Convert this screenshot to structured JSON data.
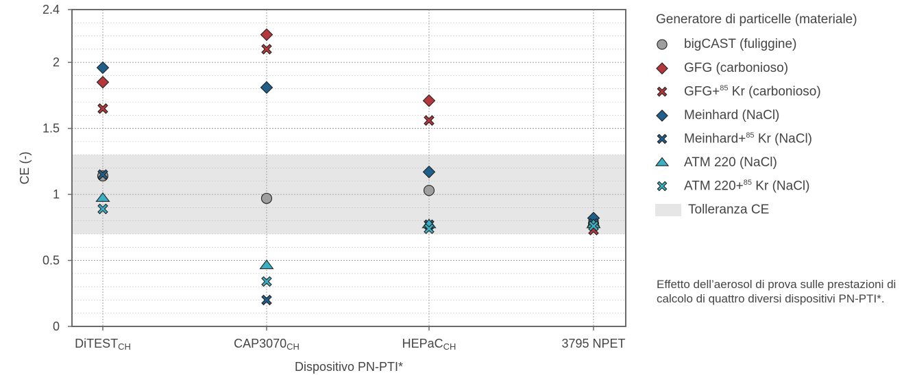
{
  "chart_data": {
    "type": "scatter",
    "xlabel": "Dispositivo PN-PTI*",
    "ylabel": "CE (-)",
    "ylim": [
      0,
      2.4
    ],
    "y_ticks": [
      "0",
      "0.5",
      "1",
      "1.5",
      "2",
      "2.4"
    ],
    "y_tick_values": [
      0,
      0.5,
      1,
      1.5,
      2,
      2.4
    ],
    "categories": [
      {
        "base": "DiTEST",
        "sub": "CH"
      },
      {
        "base": "CAP3070",
        "sub": "CH"
      },
      {
        "base": "HEPaC",
        "sub": "CH"
      },
      {
        "base": "3795 NPET",
        "sub": ""
      }
    ],
    "tolerance_band": {
      "name": "Tolleranza CE",
      "low": 0.7,
      "high": 1.3,
      "color": "#e6e6e6"
    },
    "grid": "on",
    "legend_title": "Generatore di particelle (materiale)",
    "legend_position": "right",
    "series": [
      {
        "name": "bigCAST (fuliggine)",
        "name_pre": "bigCAST (fuliggine)",
        "name_sup": "",
        "name_post": "",
        "marker": "circle",
        "color": "#9e9e9e",
        "values": [
          1.14,
          0.97,
          1.03,
          0.78
        ]
      },
      {
        "name": "GFG (carbonioso)",
        "name_pre": "GFG (carbonioso)",
        "name_sup": "",
        "name_post": "",
        "marker": "diamond",
        "color": "#b5373b",
        "values": [
          1.85,
          2.21,
          1.71,
          0.76
        ]
      },
      {
        "name": "GFG+85 Kr (carbonioso)",
        "name_pre": "GFG+",
        "name_sup": "85",
        "name_post": " Kr (carbonioso)",
        "marker": "x",
        "color": "#b5373b",
        "values": [
          1.65,
          2.1,
          1.56,
          0.73
        ]
      },
      {
        "name": "Meinhard (NaCl)",
        "name_pre": "Meinhard (NaCl)",
        "name_sup": "",
        "name_post": "",
        "marker": "diamond",
        "color": "#1f5f8b",
        "values": [
          1.96,
          1.81,
          1.17,
          0.82
        ]
      },
      {
        "name": "Meinhard+85 Kr (NaCl)",
        "name_pre": "Meinhard+",
        "name_sup": "85",
        "name_post": " Kr (NaCl)",
        "marker": "x",
        "color": "#1f5f8b",
        "values": [
          1.15,
          0.2,
          0.77,
          0.78
        ]
      },
      {
        "name": "ATM 220 (NaCl)",
        "name_pre": "ATM 220 (NaCl)",
        "name_sup": "",
        "name_post": "",
        "marker": "triangle",
        "color": "#3ab0c4",
        "values": [
          0.97,
          0.46,
          0.77,
          0.77
        ]
      },
      {
        "name": "ATM 220+85 Kr (NaCl)",
        "name_pre": "ATM 220+",
        "name_sup": "85",
        "name_post": " Kr (NaCl)",
        "marker": "x",
        "color": "#3ab0c4",
        "values": [
          0.89,
          0.34,
          0.74,
          0.76
        ]
      }
    ]
  },
  "caption": "Effetto dell’aerosol di prova sulle prestazioni di calcolo di quattro diversi dispositivi PN-PTI*."
}
